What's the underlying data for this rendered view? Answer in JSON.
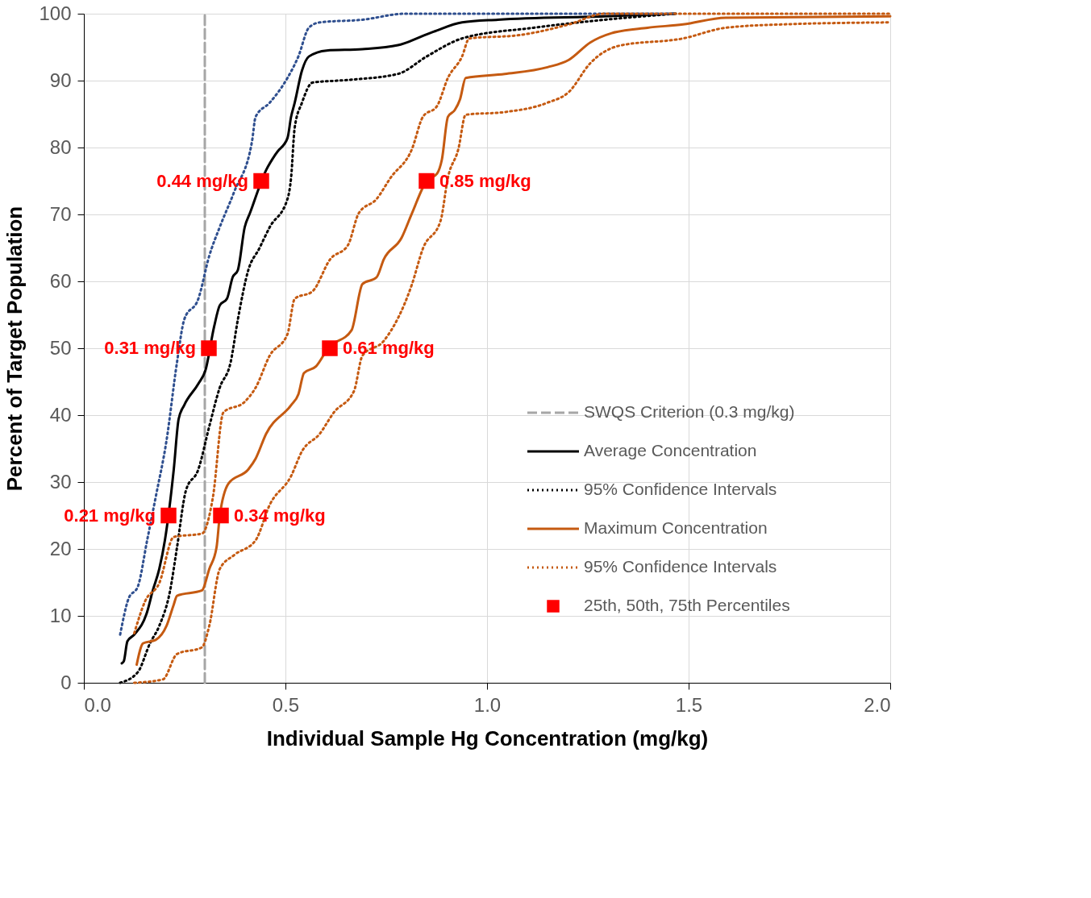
{
  "chart_data": {
    "type": "line",
    "xlabel": "Individual Sample Hg Concentration (mg/kg)",
    "ylabel": "Percent of Target Population",
    "xlim": [
      0,
      2
    ],
    "xticks": [
      {
        "value": 0,
        "label": "0.0"
      },
      {
        "value": 0.5,
        "label": "0.5"
      },
      {
        "value": 1,
        "label": "1.0"
      },
      {
        "value": 1.5,
        "label": "1.5"
      },
      {
        "value": 2,
        "label": "2.0"
      }
    ],
    "annotations": [
      {
        "text": "0.21 mg/kg",
        "x": 0.21,
        "y": 25
      },
      {
        "text": "0.31 mg/kg",
        "x": 0.31,
        "y": 50
      },
      {
        "text": "0.44 mg/kg",
        "x": 0.44,
        "y": 75
      },
      {
        "text": "0.34 mg/kg",
        "x": 0.34,
        "y": 25
      },
      {
        "text": "0.61 mg/kg",
        "x": 0.61,
        "y": 50
      },
      {
        "text": "0.85 mg/kg",
        "x": 0.85,
        "y": 75
      }
    ],
    "ylim": [
      0,
      100
    ],
    "yticks": [
      0,
      10,
      20,
      30,
      40,
      50,
      60,
      70,
      80,
      90,
      100
    ],
    "grid": true,
    "legend": "bottom right",
    "series": [
      {
        "name": "SWQS Criterion (0.3 mg/kg)",
        "color": "#a6a6a6",
        "line_style": "dashed",
        "x": [
          0.3,
          0.3
        ],
        "values": [
          0,
          100
        ]
      },
      {
        "name": "Average Concentration",
        "color": "#000000",
        "line_style": "solid",
        "x": [
          0.094,
          0.099,
          0.108,
          0.125,
          0.157,
          0.171,
          0.187,
          0.201,
          0.223,
          0.235,
          0.249,
          0.284,
          0.302,
          0.323,
          0.337,
          0.355,
          0.369,
          0.382,
          0.399,
          0.412,
          0.452,
          0.479,
          0.505,
          0.514,
          0.523,
          0.541,
          0.558,
          0.602,
          0.691,
          0.779,
          0.867,
          0.938,
          1.027,
          1.292,
          1.468
        ],
        "values": [
          2.9,
          3.2,
          6.2,
          7.2,
          10.6,
          13.8,
          17,
          21.3,
          31.9,
          39.4,
          41.5,
          44.7,
          46.8,
          53.2,
          56.4,
          57.4,
          60.6,
          61.7,
          68.1,
          70.2,
          76.6,
          79.3,
          81.4,
          84.6,
          86.7,
          91.5,
          93.6,
          94.5,
          94.7,
          95.3,
          97.3,
          98.7,
          99.1,
          99.6,
          100
        ]
      },
      {
        "name": "95% Confidence Intervals",
        "color": "#000000",
        "line_style": "dotted",
        "x": [
          0.09,
          0.134,
          0.164,
          0.187,
          0.214,
          0.231,
          0.253,
          0.284,
          0.311,
          0.337,
          0.364,
          0.382,
          0.408,
          0.435,
          0.461,
          0.505,
          0.514,
          0.523,
          0.541,
          0.567,
          0.655,
          0.779,
          0.85,
          0.938,
          1.115,
          1.292,
          1.468
        ],
        "values": [
          0,
          1.6,
          5.9,
          8.5,
          13.8,
          20.2,
          28.7,
          31.9,
          38.3,
          44.1,
          47.9,
          54.3,
          61.7,
          64.9,
          68.1,
          72.3,
          75.5,
          83,
          86.7,
          89.7,
          90.1,
          91,
          93.6,
          96.3,
          97.9,
          99.1,
          100
        ]
      },
      {
        "color": "#2f4f8f",
        "line_style": "dotted",
        "x": [
          0.09,
          0.111,
          0.134,
          0.157,
          0.178,
          0.205,
          0.231,
          0.249,
          0.284,
          0.311,
          0.337,
          0.373,
          0.417,
          0.426,
          0.461,
          0.505,
          0.532,
          0.558,
          0.585,
          0.691,
          0.797,
          1.468
        ],
        "values": [
          7.2,
          12.6,
          14.4,
          21.3,
          27.7,
          36.2,
          47.9,
          54.3,
          57.4,
          63.8,
          68.1,
          73.4,
          80.9,
          84.6,
          86.7,
          90.4,
          93.6,
          97.9,
          98.7,
          99.1,
          100,
          100
        ]
      },
      {
        "name": "Maximum Concentration",
        "color": "#c55a11",
        "line_style": "solid",
        "x": [
          0.131,
          0.147,
          0.178,
          0.205,
          0.223,
          0.231,
          0.293,
          0.311,
          0.329,
          0.337,
          0.359,
          0.408,
          0.426,
          0.452,
          0.514,
          0.532,
          0.546,
          0.576,
          0.606,
          0.664,
          0.691,
          0.726,
          0.744,
          0.788,
          0.814,
          0.85,
          0.876,
          0.888,
          0.903,
          0.92,
          0.933,
          0.947,
          1.044,
          1.15,
          1.203,
          1.256,
          1.309,
          1.398,
          1.486,
          1.592,
          2.0
        ],
        "values": [
          2.7,
          5.9,
          6.4,
          8.5,
          11.7,
          13,
          13.8,
          17,
          20.2,
          24.9,
          29.8,
          31.9,
          33.5,
          37.2,
          41.5,
          43.1,
          46.3,
          47.3,
          50,
          52.7,
          59.6,
          60.6,
          63.3,
          66.5,
          70.2,
          75,
          76.1,
          78.2,
          84.6,
          85.6,
          87.2,
          90.4,
          91,
          92,
          93.1,
          95.7,
          97.1,
          97.9,
          98.4,
          99.4,
          99.6
        ]
      },
      {
        "name": "95% Confidence Intervals",
        "color": "#c55a11",
        "line_style": "dotted",
        "x": [
          0.125,
          0.196,
          0.231,
          0.293,
          0.311,
          0.337,
          0.373,
          0.426,
          0.461,
          0.514,
          0.541,
          0.585,
          0.62,
          0.67,
          0.691,
          0.744,
          0.814,
          0.841,
          0.885,
          0.903,
          0.929,
          0.947,
          1.044,
          1.15,
          1.203,
          1.256,
          1.327,
          1.486,
          1.592,
          1.733,
          2.0
        ],
        "values": [
          0,
          0.5,
          4.3,
          5.3,
          8.5,
          17,
          19.1,
          21.3,
          26.6,
          30.9,
          34.6,
          37.2,
          40.4,
          43.6,
          48.9,
          51.1,
          59.6,
          64.9,
          69.1,
          75.5,
          79.8,
          84.9,
          85.3,
          86.7,
          88.3,
          92.6,
          95.2,
          96.3,
          97.9,
          98.4,
          98.7
        ]
      },
      {
        "color": "#c55a11",
        "line_style": "dotted",
        "x": [
          0.125,
          0.152,
          0.187,
          0.223,
          0.293,
          0.32,
          0.346,
          0.399,
          0.426,
          0.461,
          0.505,
          0.523,
          0.567,
          0.611,
          0.655,
          0.682,
          0.726,
          0.761,
          0.814,
          0.841,
          0.876,
          0.903,
          0.938,
          0.956,
          1.08,
          1.203,
          1.292,
          2.0
        ],
        "values": [
          7.4,
          12.2,
          14.9,
          21.8,
          22.3,
          27.7,
          40.4,
          42,
          44.1,
          48.9,
          52.1,
          57.4,
          58.5,
          63.3,
          65.4,
          70.2,
          72.3,
          75.5,
          79.8,
          84.6,
          86.2,
          90.4,
          93.6,
          96.3,
          96.8,
          98.4,
          100,
          100
        ]
      },
      {
        "name": "25th, 50th, 75th Percentiles",
        "type": "scatter",
        "marker": "square",
        "color": "#ff0000",
        "x": [
          0.21,
          0.31,
          0.44,
          0.34,
          0.61,
          0.85
        ],
        "values": [
          25,
          50,
          75,
          25,
          50,
          75
        ]
      }
    ]
  }
}
